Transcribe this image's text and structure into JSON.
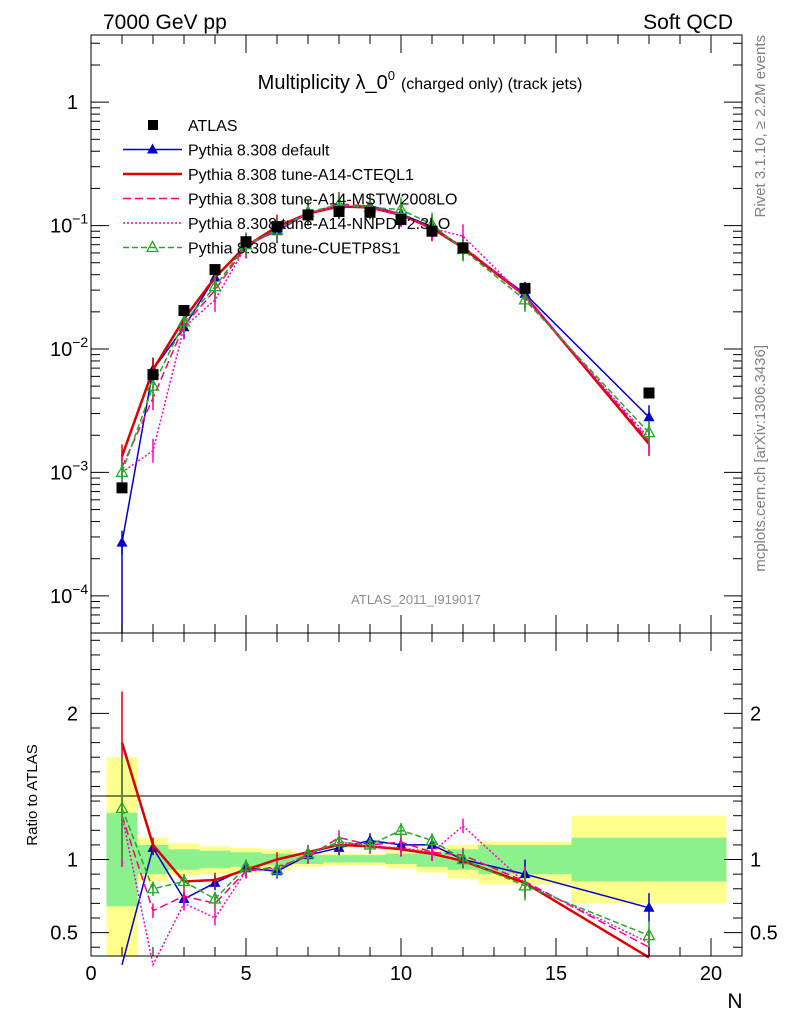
{
  "header": {
    "left": "7000 GeV pp",
    "right": "Soft QCD"
  },
  "side_labels": {
    "rivet": "Rivet 3.1.10, ≥ 2.2M events",
    "mcplots": "mcplots.cern.ch [arXiv:1306.3436]"
  },
  "chart_data": [
    {
      "type": "line",
      "title": "Multiplicity λ_0",
      "title_sup": "0",
      "title_suffix": "(charged only) (track jets)",
      "watermark": "ATLAS_2011_I919017",
      "yscale": "log",
      "xlim": [
        0,
        21
      ],
      "ylim": [
        5e-05,
        3.5
      ],
      "y_ticks": [
        {
          "value": 0.0001,
          "base": "10",
          "exp": "−4"
        },
        {
          "value": 0.001,
          "base": "10",
          "exp": "−3"
        },
        {
          "value": 0.01,
          "base": "10",
          "exp": "−2"
        },
        {
          "value": 0.1,
          "base": "10",
          "exp": "−1"
        },
        {
          "value": 1,
          "base": "1",
          "exp": ""
        }
      ],
      "legend_position": "top-left",
      "data": {
        "name": "ATLAS",
        "x": [
          1,
          2,
          3,
          4,
          5,
          6,
          7,
          8,
          9,
          10,
          11,
          12,
          14,
          18
        ],
        "y": [
          0.00075,
          0.0062,
          0.0205,
          0.044,
          0.074,
          0.098,
          0.122,
          0.13,
          0.128,
          0.112,
          0.09,
          0.066,
          0.031,
          0.0044
        ]
      },
      "series": [
        {
          "name": "Pythia 8.308 default",
          "color": "#0000cc",
          "dash": "solid",
          "marker": "triangle-filled",
          "x": [
            1,
            2,
            3,
            4,
            5,
            6,
            7,
            8,
            9,
            10,
            11,
            12,
            14,
            18
          ],
          "y": [
            0.00027,
            0.0068,
            0.015,
            0.038,
            0.07,
            0.09,
            0.126,
            0.141,
            0.145,
            0.124,
            0.098,
            0.066,
            0.028,
            0.0028
          ]
        },
        {
          "name": "Pythia 8.308 tune-A14-CTEQL1",
          "color": "#dd0000",
          "dash": "solid",
          "marker": "none",
          "x": [
            1,
            2,
            3,
            4,
            5,
            6,
            7,
            8,
            9,
            10,
            11,
            12,
            14,
            18
          ],
          "y": [
            0.00135,
            0.0068,
            0.0175,
            0.038,
            0.068,
            0.098,
            0.125,
            0.143,
            0.14,
            0.122,
            0.095,
            0.066,
            0.027,
            0.0017
          ]
        },
        {
          "name": "Pythia 8.308 tune-A14-MSTW2008LO",
          "color": "#ff0080",
          "dash": "8,4",
          "marker": "none",
          "x": [
            1,
            2,
            3,
            4,
            5,
            6,
            7,
            8,
            9,
            10,
            11,
            12,
            14,
            18
          ],
          "y": [
            0.0011,
            0.004,
            0.0155,
            0.03,
            0.068,
            0.092,
            0.125,
            0.15,
            0.143,
            0.125,
            0.093,
            0.068,
            0.027,
            0.0018
          ]
        },
        {
          "name": "Pythia 8.308 tune-A14-NNPDF2.3LO",
          "color": "#ff00cc",
          "dash": "2,2",
          "marker": "none",
          "x": [
            1,
            2,
            3,
            4,
            5,
            6,
            7,
            8,
            9,
            10,
            11,
            12,
            14,
            18
          ],
          "y": [
            0.001,
            0.0015,
            0.015,
            0.025,
            0.068,
            0.092,
            0.125,
            0.145,
            0.14,
            0.122,
            0.095,
            0.082,
            0.026,
            0.0019
          ]
        },
        {
          "name": "Pythia 8.308 tune-CUETP8S1",
          "color": "#22aa22",
          "dash": "6,3",
          "marker": "triangle-open",
          "x": [
            1,
            2,
            3,
            4,
            5,
            6,
            7,
            8,
            9,
            10,
            11,
            12,
            14,
            18
          ],
          "y": [
            0.001,
            0.005,
            0.0165,
            0.032,
            0.07,
            0.092,
            0.128,
            0.148,
            0.14,
            0.135,
            0.102,
            0.064,
            0.025,
            0.0021
          ]
        }
      ]
    },
    {
      "type": "line",
      "ylabel": "Ratio to ATLAS",
      "xlabel": "N",
      "xlim": [
        0,
        21
      ],
      "ylim": [
        0.34,
        2.55
      ],
      "x_ticks": [
        0,
        5,
        10,
        15,
        20
      ],
      "y_ticks": [
        0.5,
        1,
        2
      ],
      "bands": [
        {
          "x0": 0.5,
          "x1": 1.5,
          "inner": [
            0.68,
            1.32
          ],
          "outer": [
            0.3,
            1.7
          ]
        },
        {
          "x0": 1.5,
          "x1": 2.5,
          "inner": [
            0.9,
            1.1
          ],
          "outer": [
            0.85,
            1.15
          ]
        },
        {
          "x0": 2.5,
          "x1": 3.5,
          "inner": [
            0.93,
            1.07
          ],
          "outer": [
            0.89,
            1.11
          ]
        },
        {
          "x0": 3.5,
          "x1": 4.5,
          "inner": [
            0.94,
            1.06
          ],
          "outer": [
            0.9,
            1.09
          ]
        },
        {
          "x0": 4.5,
          "x1": 5.5,
          "inner": [
            0.95,
            1.05
          ],
          "outer": [
            0.91,
            1.08
          ]
        },
        {
          "x0": 5.5,
          "x1": 6.5,
          "inner": [
            0.96,
            1.04
          ],
          "outer": [
            0.93,
            1.07
          ]
        },
        {
          "x0": 6.5,
          "x1": 7.5,
          "inner": [
            0.97,
            1.03
          ],
          "outer": [
            0.95,
            1.05
          ]
        },
        {
          "x0": 7.5,
          "x1": 8.5,
          "inner": [
            0.98,
            1.03
          ],
          "outer": [
            0.96,
            1.04
          ]
        },
        {
          "x0": 8.5,
          "x1": 9.5,
          "inner": [
            0.98,
            1.03
          ],
          "outer": [
            0.96,
            1.04
          ]
        },
        {
          "x0": 9.5,
          "x1": 10.5,
          "inner": [
            0.97,
            1.04
          ],
          "outer": [
            0.94,
            1.06
          ]
        },
        {
          "x0": 10.5,
          "x1": 11.5,
          "inner": [
            0.95,
            1.05
          ],
          "outer": [
            0.91,
            1.08
          ]
        },
        {
          "x0": 11.5,
          "x1": 12.5,
          "inner": [
            0.93,
            1.07
          ],
          "outer": [
            0.87,
            1.1
          ]
        },
        {
          "x0": 12.5,
          "x1": 15.5,
          "inner": [
            0.9,
            1.1
          ],
          "outer": [
            0.83,
            1.12
          ]
        },
        {
          "x0": 15.5,
          "x1": 20.5,
          "inner": [
            0.85,
            1.15
          ],
          "outer": [
            0.7,
            1.3
          ]
        }
      ],
      "series": [
        {
          "name": "Pythia 8.308 default",
          "color": "#0000cc",
          "dash": "solid",
          "marker": "triangle-filled",
          "x": [
            1,
            2,
            3,
            4,
            5,
            6,
            7,
            8,
            9,
            10,
            11,
            12,
            14,
            18
          ],
          "y": [
            0.28,
            1.08,
            0.73,
            0.84,
            0.94,
            0.92,
            1.03,
            1.08,
            1.13,
            1.1,
            1.1,
            1.0,
            0.9,
            0.67
          ]
        },
        {
          "name": "Pythia 8.308 tune-A14-CTEQL1",
          "color": "#dd0000",
          "dash": "solid",
          "marker": "none",
          "x": [
            1,
            2,
            3,
            4,
            5,
            6,
            7,
            8,
            9,
            10,
            11,
            12,
            14,
            18
          ],
          "y": [
            1.8,
            1.1,
            0.85,
            0.86,
            0.93,
            1.0,
            1.05,
            1.1,
            1.09,
            1.07,
            1.04,
            0.99,
            0.84,
            0.33
          ]
        },
        {
          "name": "Pythia 8.308 tune-A14-MSTW2008LO",
          "color": "#ff0080",
          "dash": "8,4",
          "marker": "none",
          "x": [
            1,
            2,
            3,
            4,
            5,
            6,
            7,
            8,
            9,
            10,
            11,
            12,
            14,
            18
          ],
          "y": [
            1.3,
            0.65,
            0.75,
            0.7,
            0.92,
            0.95,
            1.02,
            1.15,
            1.1,
            1.12,
            1.05,
            1.03,
            0.85,
            0.4
          ]
        },
        {
          "name": "Pythia 8.308 tune-A14-NNPDF2.3LO",
          "color": "#ff00cc",
          "dash": "2,2",
          "marker": "none",
          "x": [
            1,
            2,
            3,
            4,
            5,
            6,
            7,
            8,
            9,
            10,
            11,
            12,
            14,
            18
          ],
          "y": [
            1.3,
            0.28,
            0.7,
            0.6,
            0.92,
            0.94,
            1.03,
            1.12,
            1.09,
            1.08,
            1.05,
            1.23,
            0.84,
            0.43
          ]
        },
        {
          "name": "Pythia 8.308 tune-CUETP8S1",
          "color": "#22aa22",
          "dash": "6,3",
          "marker": "triangle-open",
          "x": [
            1,
            2,
            3,
            4,
            5,
            6,
            7,
            8,
            9,
            10,
            11,
            12,
            14,
            18
          ],
          "y": [
            1.35,
            0.8,
            0.85,
            0.73,
            0.95,
            0.93,
            1.04,
            1.12,
            1.1,
            1.2,
            1.13,
            1.0,
            0.82,
            0.48
          ]
        }
      ]
    }
  ]
}
